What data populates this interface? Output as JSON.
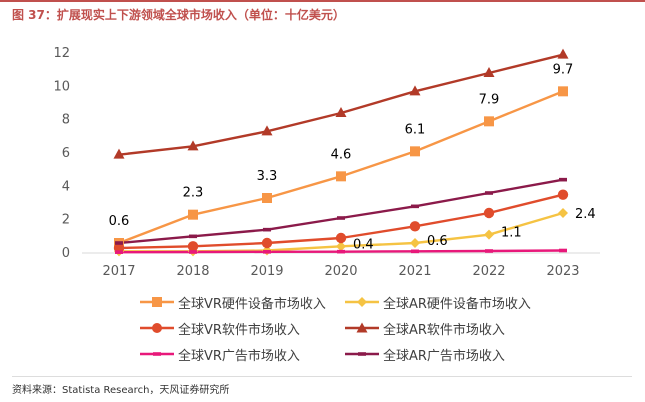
{
  "title": "图 37：扩展现实上下游领域全球市场收入（单位：十亿美元）",
  "source": "资料来源：Statista Research，天风证券研究所",
  "colors": {
    "axis": "#d9d9d9",
    "accent": "#c0504d"
  },
  "chart_data": {
    "type": "line",
    "categories": [
      "2017",
      "2018",
      "2019",
      "2020",
      "2021",
      "2022",
      "2023"
    ],
    "ylim": [
      0,
      12
    ],
    "yticks": [
      0,
      2,
      4,
      6,
      8,
      10,
      12
    ],
    "grid": false,
    "legend_position": "bottom",
    "series": [
      {
        "name": "全球VR硬件设备市场收入",
        "color": "#f79646",
        "marker": "square",
        "values": [
          0.6,
          2.3,
          3.3,
          4.6,
          6.1,
          7.9,
          9.7
        ],
        "labels": [
          "0.6",
          "2.3",
          "3.3",
          "4.6",
          "6.1",
          "7.9",
          "9.7"
        ]
      },
      {
        "name": "全球AR硬件设备市场收入",
        "color": "#f5c343",
        "marker": "diamond",
        "values": [
          0.1,
          0.1,
          0.15,
          0.4,
          0.6,
          1.1,
          2.4
        ],
        "labels": [
          "",
          "",
          "",
          "0.4",
          "0.6",
          "1.1",
          "2.4"
        ]
      },
      {
        "name": "全球VR软件市场收入",
        "color": "#e04c2c",
        "marker": "circle",
        "values": [
          0.3,
          0.4,
          0.6,
          0.9,
          1.6,
          2.4,
          3.5
        ]
      },
      {
        "name": "全球AR软件市场收入",
        "color": "#b23a28",
        "marker": "triangle",
        "values": [
          5.9,
          6.4,
          7.3,
          8.4,
          9.7,
          10.8,
          11.9
        ]
      },
      {
        "name": "全球VR广告市场收入",
        "color": "#e8187a",
        "marker": "dash",
        "values": [
          0.05,
          0.06,
          0.07,
          0.08,
          0.1,
          0.12,
          0.15
        ]
      },
      {
        "name": "全球AR广告市场收入",
        "color": "#8b1a4a",
        "marker": "dash",
        "values": [
          0.6,
          1.0,
          1.4,
          2.1,
          2.8,
          3.6,
          4.4
        ]
      }
    ]
  }
}
